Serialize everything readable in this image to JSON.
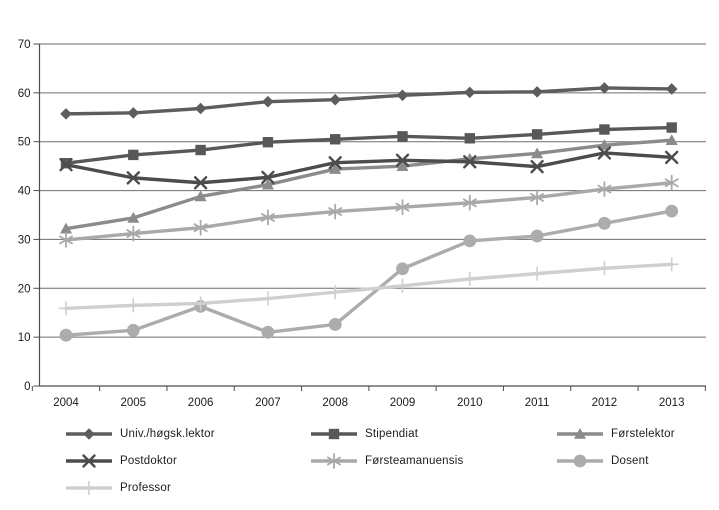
{
  "figure": {
    "background": "#ffffff",
    "top_rule_color": "#8a8a8a",
    "gridline_color": "#6e6e6e",
    "axis_color": "#4d4d4d",
    "tick_label_color": "#1c1c1c"
  },
  "chart_data": {
    "type": "line",
    "title": "",
    "xlabel": "",
    "ylabel": "",
    "categories": [
      "2004",
      "2005",
      "2006",
      "2007",
      "2008",
      "2009",
      "2010",
      "2011",
      "2012",
      "2013"
    ],
    "ylim": [
      0,
      70
    ],
    "y_ticks": [
      0,
      10,
      20,
      30,
      40,
      50,
      60,
      70
    ],
    "grid": true,
    "legend_position": "bottom",
    "series": [
      {
        "name": "Univ./høgsk.lektor",
        "marker": "diamond",
        "color": "#5d5d5d",
        "values": [
          55.7,
          55.9,
          56.8,
          58.2,
          58.6,
          59.5,
          60.1,
          60.2,
          61.0,
          60.8
        ]
      },
      {
        "name": "Stipendiat",
        "marker": "square",
        "color": "#585858",
        "values": [
          45.6,
          47.3,
          48.3,
          49.9,
          50.5,
          51.1,
          50.7,
          51.5,
          52.5,
          52.9
        ]
      },
      {
        "name": "Førstelektor",
        "marker": "triangle",
        "color": "#8b8b8b",
        "values": [
          32.2,
          34.4,
          38.8,
          41.2,
          44.4,
          45.0,
          46.5,
          47.6,
          49.3,
          50.3
        ]
      },
      {
        "name": "Postdoktor",
        "marker": "x",
        "color": "#4c4c4c",
        "values": [
          45.3,
          42.6,
          41.6,
          42.7,
          45.7,
          46.2,
          45.9,
          44.9,
          47.7,
          46.8
        ]
      },
      {
        "name": "Førsteamanuensis",
        "marker": "asterisk",
        "color": "#a9a9a9",
        "values": [
          29.9,
          31.2,
          32.4,
          34.5,
          35.7,
          36.6,
          37.5,
          38.6,
          40.3,
          41.6
        ]
      },
      {
        "name": "Dosent",
        "marker": "circle",
        "color": "#acacac",
        "values": [
          10.4,
          11.4,
          16.3,
          11.0,
          12.6,
          24.0,
          29.7,
          30.7,
          33.3,
          35.8
        ]
      },
      {
        "name": "Professor",
        "marker": "plus",
        "color": "#cfcfcf",
        "values": [
          15.9,
          16.5,
          16.9,
          17.9,
          19.2,
          20.5,
          21.9,
          23.0,
          24.1,
          24.9
        ]
      }
    ]
  }
}
